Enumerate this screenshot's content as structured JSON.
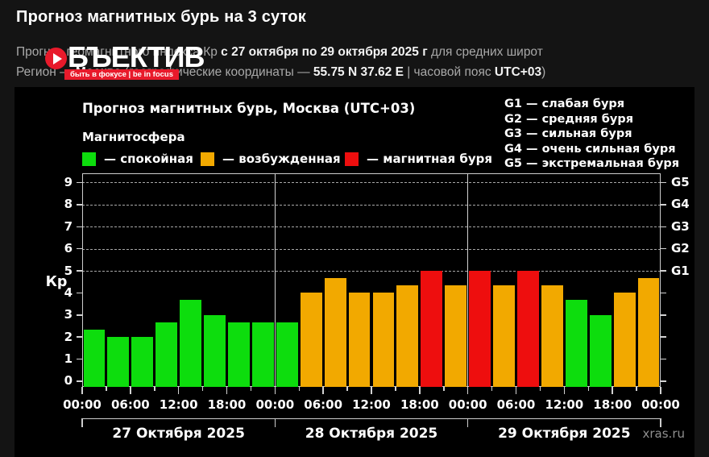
{
  "header": {
    "title": "Прогноз магнитных бурь на 3 суток",
    "subtitle_line1": [
      {
        "text": "Прогноз геомагнитного индекса Кр ",
        "strong": false
      },
      {
        "text": "с 27 октября по 29 октября 2025 г",
        "strong": true
      },
      {
        "text": " для средних широт",
        "strong": false
      }
    ],
    "subtitle_line2": [
      {
        "text": "Регион — ",
        "strong": false
      },
      {
        "text": "Москва",
        "strong": true
      },
      {
        "text": " (географические координаты — ",
        "strong": false
      },
      {
        "text": "55.75 N 37.62 E",
        "strong": true
      },
      {
        "text": " | часовой пояс ",
        "strong": false
      },
      {
        "text": "UTC+03",
        "strong": true
      },
      {
        "text": ")",
        "strong": false
      }
    ]
  },
  "watermark": {
    "brand": "ОБЪЕКТИВ",
    "tagline": "быть в фокусе | be in focus",
    "icon": "play-lens-icon",
    "accent_color": "#e81a2b"
  },
  "chart_data": {
    "type": "bar",
    "title": "Прогноз магнитных бурь, Москва (UTC+03)",
    "legend_title": "Магнитосфера",
    "legend": [
      {
        "status": "quiet",
        "label": "— спокойная"
      },
      {
        "status": "excited",
        "label": "— возбужденная"
      },
      {
        "status": "storm",
        "label": "— магнитная буря"
      }
    ],
    "g_levels": [
      {
        "label": "G1 — слабая буря",
        "kp": 5
      },
      {
        "label": "G2 — средняя буря",
        "kp": 6
      },
      {
        "label": "G3 — сильная буря",
        "kp": 7
      },
      {
        "label": "G4 — очень сильная буря",
        "kp": 8
      },
      {
        "label": "G5 — экстремальная буря",
        "kp": 9
      }
    ],
    "right_axis_labels": [
      "G1",
      "G2",
      "G3",
      "G4",
      "G5"
    ],
    "ylabel": "Кр",
    "ylim": [
      0,
      9
    ],
    "y_ticks": [
      0,
      1,
      2,
      3,
      4,
      5,
      6,
      7,
      8,
      9
    ],
    "grid_dashed_at": [
      5,
      6,
      7,
      8,
      9
    ],
    "bar_interval_hours": 3,
    "x_tick_labels": [
      "00:00",
      "06:00",
      "12:00",
      "18:00",
      "00:00",
      "06:00",
      "12:00",
      "18:00",
      "00:00",
      "06:00",
      "12:00",
      "18:00",
      "00:00"
    ],
    "days": [
      {
        "date": "27 Октября 2025",
        "values": [
          2.33,
          2.0,
          2.0,
          2.67,
          3.67,
          3.0,
          2.67,
          2.67
        ]
      },
      {
        "date": "28 Октября 2025",
        "values": [
          2.67,
          4.0,
          4.67,
          4.0,
          4.0,
          4.33,
          5.0,
          4.33
        ]
      },
      {
        "date": "29 Октября 2025",
        "values": [
          5.0,
          4.33,
          5.0,
          4.33,
          3.67,
          3.0,
          4.0,
          4.67
        ]
      }
    ],
    "thresholds": {
      "excited_min_kp": 4,
      "storm_min_kp": 5
    },
    "colors": {
      "quiet": "#0ddd0d",
      "excited": "#f2a900",
      "storm": "#ee0e0e"
    },
    "source": "xras.ru"
  }
}
